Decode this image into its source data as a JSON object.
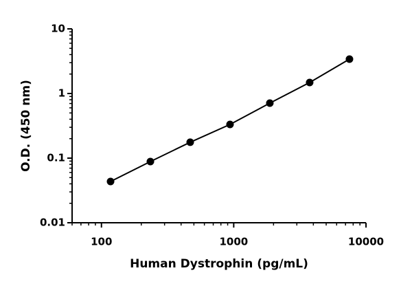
{
  "chart_data": {
    "type": "scatter",
    "x_label": "Human Dystrophin (pg/mL)",
    "y_label": "O.D. (450 nm)",
    "x_log": true,
    "y_log": true,
    "xlim": [
      60,
      10000
    ],
    "xticks": [
      100,
      1000,
      10000
    ],
    "ylim": [
      0.01,
      10
    ],
    "yticks": [
      0.01,
      0.1,
      1,
      10
    ],
    "minor_ticks": true,
    "connect": true,
    "series": [
      {
        "color": "#000000",
        "x": [
          117.2,
          234.4,
          468.75,
          937.5,
          1875,
          3750,
          7500
        ],
        "values": [
          0.0435,
          0.0885,
          0.176,
          0.332,
          0.71,
          1.48,
          3.4
        ]
      }
    ]
  }
}
